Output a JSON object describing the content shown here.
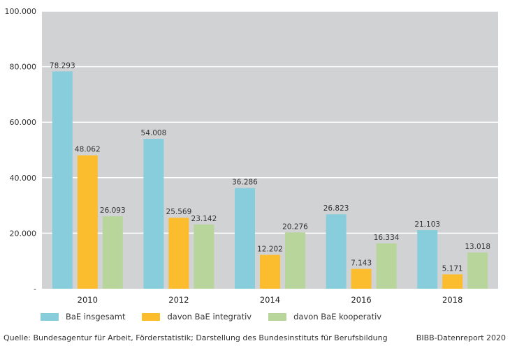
{
  "chart_data": {
    "type": "bar",
    "categories": [
      "2010",
      "2012",
      "2014",
      "2016",
      "2018"
    ],
    "series": [
      {
        "name": "BaE insgesamt",
        "color": "#87cddc",
        "values": [
          78293,
          54008,
          36286,
          26823,
          21103
        ],
        "labels": [
          "78.293",
          "54.008",
          "36.286",
          "26.823",
          "21.103"
        ]
      },
      {
        "name": "davon BaE integrativ",
        "color": "#fbbc2e",
        "values": [
          48062,
          25569,
          12202,
          7143,
          5171
        ],
        "labels": [
          "48.062",
          "25.569",
          "12.202",
          "7.143",
          "5.171"
        ]
      },
      {
        "name": "davon BaE kooperativ",
        "color": "#b8d69b",
        "values": [
          26093,
          23142,
          20276,
          16334,
          13018
        ],
        "labels": [
          "26.093",
          "23.142",
          "20.276",
          "16.334",
          "13.018"
        ]
      }
    ],
    "ylim": [
      0,
      100000
    ],
    "yticks": [
      0,
      20000,
      40000,
      60000,
      80000,
      100000
    ],
    "ytick_labels": [
      "-",
      "20.000",
      "40.000",
      "60.000",
      "80.000",
      "100.000"
    ],
    "grid": true,
    "plot_background": "#d1d2d4",
    "legend_position": "bottom-left"
  },
  "footer": {
    "source": "Quelle:  Bundesagentur für Arbeit, Förderstatistik; Darstellung des Bundesinstituts für Berufsbildung",
    "credit": "BIBB-Datenreport 2020"
  }
}
